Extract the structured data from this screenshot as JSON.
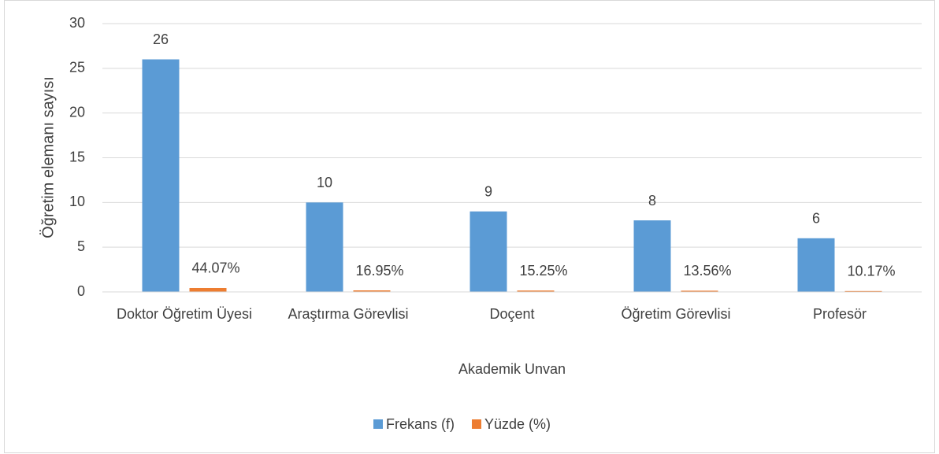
{
  "chart_data": {
    "type": "bar",
    "x_label": "Akademik Unvan",
    "y_label": "Öğretim elemanı sayısı",
    "categories": [
      "Doktor Öğretim Üyesi",
      "Araştırma Görevlisi",
      "Doçent",
      "Öğretim Görevlisi",
      "Profesör"
    ],
    "series": [
      {
        "name": "Frekans (f)",
        "color": "#5b9bd5",
        "values": [
          26,
          10,
          9,
          8,
          6
        ]
      },
      {
        "name": "Yüzde (%)",
        "color": "#ed7d31",
        "values": [
          0.4407,
          0.1695,
          0.1525,
          0.1356,
          0.1017
        ],
        "value_labels": [
          "44.07%",
          "16.95%",
          "15.25%",
          "13.56%",
          "10.17%"
        ]
      }
    ],
    "ylim": [
      0,
      30
    ],
    "yticks": [
      0,
      5,
      10,
      15,
      20,
      25,
      30
    ],
    "grid": true,
    "legend": "bottom"
  }
}
